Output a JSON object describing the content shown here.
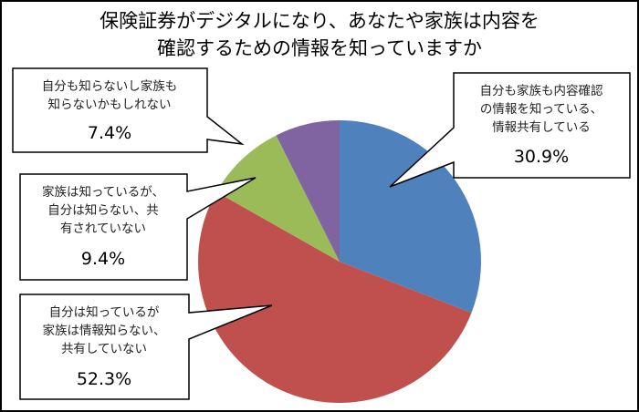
{
  "chart_data": {
    "type": "pie",
    "title": [
      "保険証券がデジタルになり、あなたや家族は内容を",
      "確認するための情報を知っていますか"
    ],
    "slices": [
      {
        "label": [
          "自分も家族も内容確認",
          "の情報を知っている、",
          "情報共有している"
        ],
        "value": 30.9,
        "value_label": "30.9%",
        "color": "#4F81BD"
      },
      {
        "label": [
          "自分は知っているが",
          "家族は情報知らない、",
          "共有していない"
        ],
        "value": 52.3,
        "value_label": "52.3%",
        "color": "#C0504D"
      },
      {
        "label": [
          "家族は知っているが、",
          "自分は知らない、共",
          "有されていない"
        ],
        "value": 9.4,
        "value_label": "9.4%",
        "color": "#9BBB59"
      },
      {
        "label": [
          "自分も知らないし家族も",
          "知らないかもしれない"
        ],
        "value": 7.4,
        "value_label": "7.4%",
        "color": "#8064A2"
      }
    ],
    "start": "12 o'clock",
    "direction": "clockwise",
    "legend": "none (callout labels)"
  }
}
